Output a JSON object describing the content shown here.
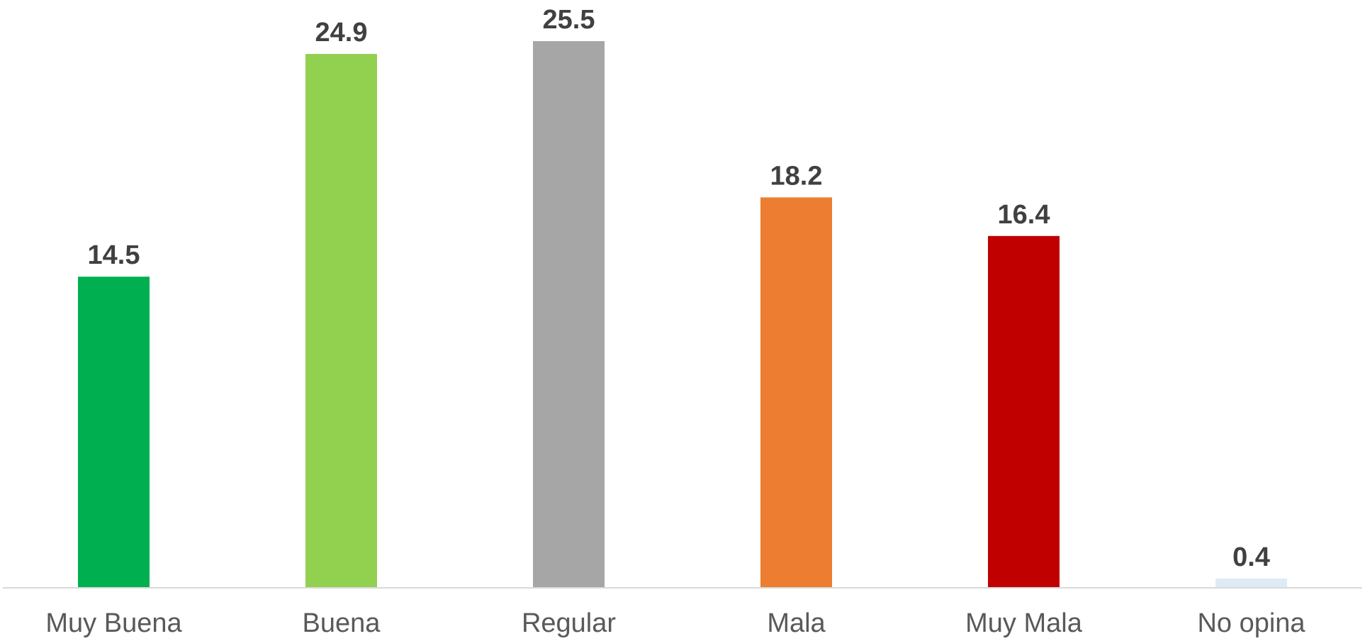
{
  "chart_data": {
    "type": "bar",
    "categories": [
      "Muy Buena",
      "Buena",
      "Regular",
      "Mala",
      "Muy Mala",
      "No opina"
    ],
    "values": [
      14.5,
      24.9,
      25.5,
      18.2,
      16.4,
      0.4
    ],
    "value_labels": [
      "14.5",
      "24.9",
      "25.5",
      "18.2",
      "16.4",
      "0.4"
    ],
    "colors": [
      "#00B050",
      "#92D050",
      "#A6A6A6",
      "#ED7D31",
      "#C00000",
      "#DEEBF7"
    ],
    "label_color": "#404040",
    "category_label_color": "#595959",
    "axis_color": "#D9D9D9",
    "title": "",
    "xlabel": "",
    "ylabel": "",
    "ylim": [
      0,
      25.5
    ],
    "grid": false,
    "legend": "none"
  }
}
